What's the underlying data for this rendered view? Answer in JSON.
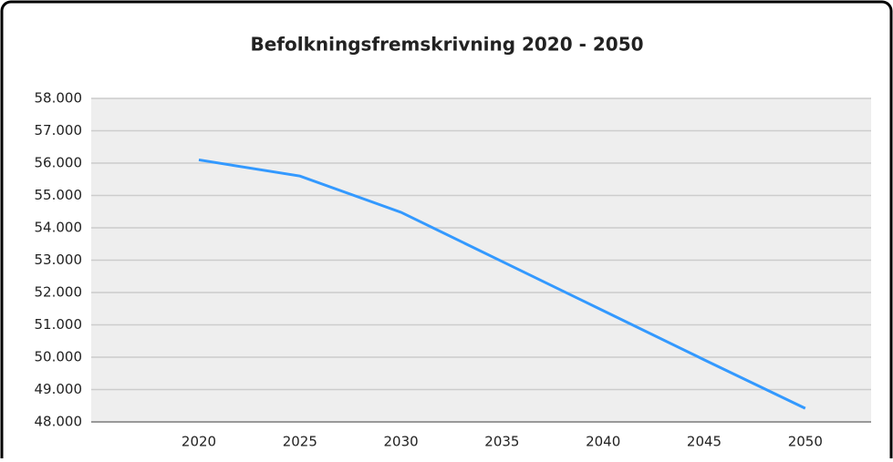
{
  "chart_data": {
    "type": "line",
    "title": "Befolkningsfremskrivning 2020 - 2050",
    "categories": [
      "2020",
      "2025",
      "2030",
      "2035",
      "2040",
      "2045",
      "2050"
    ],
    "series": [
      {
        "name": null,
        "color": "#3399ff",
        "values": [
          56100,
          55600,
          54480,
          52960,
          51440,
          49920,
          48420
        ]
      }
    ],
    "ylim": [
      48000,
      58000
    ],
    "yticks": [
      {
        "value": 48000,
        "label": "48.000"
      },
      {
        "value": 49000,
        "label": "49.000"
      },
      {
        "value": 50000,
        "label": "50.000"
      },
      {
        "value": 51000,
        "label": "51.000"
      },
      {
        "value": 52000,
        "label": "52.000"
      },
      {
        "value": 53000,
        "label": "53.000"
      },
      {
        "value": 54000,
        "label": "54.000"
      },
      {
        "value": 55000,
        "label": "55.000"
      },
      {
        "value": 56000,
        "label": "56.000"
      },
      {
        "value": 57000,
        "label": "57.000"
      },
      {
        "value": 58000,
        "label": "58.000"
      }
    ],
    "grid": true
  }
}
